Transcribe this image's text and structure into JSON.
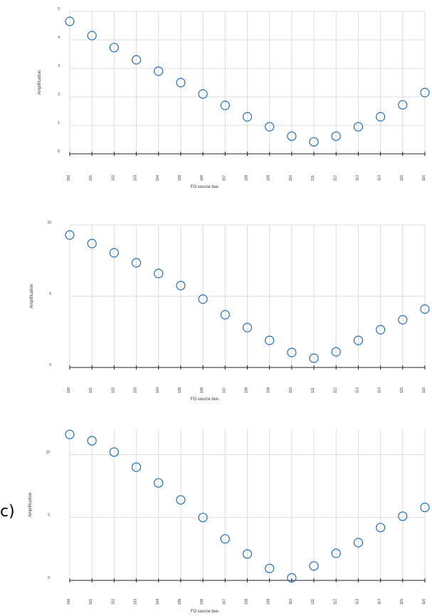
{
  "colors": {
    "marker": "#1f6fb5",
    "grid": "#dcdcdc",
    "axis": "#222222"
  },
  "panel_label": "c)",
  "chart_data": [
    {
      "type": "scatter",
      "xlabel": "FO source bus",
      "ylabel": "Amplification",
      "categories": [
        "100",
        "101",
        "102",
        "103",
        "104",
        "105",
        "106",
        "107",
        "108",
        "109",
        "110",
        "111",
        "112",
        "113",
        "114",
        "115",
        "116"
      ],
      "values": [
        4.65,
        4.15,
        3.73,
        3.3,
        2.9,
        2.5,
        2.1,
        1.7,
        1.3,
        0.95,
        0.62,
        0.42,
        0.62,
        0.95,
        1.3,
        1.72,
        2.15
      ],
      "ylim": [
        0,
        5
      ],
      "yticks": [
        "0",
        "1",
        "2",
        "3",
        "4",
        "5"
      ],
      "ytick_values": [
        0,
        1,
        2,
        3,
        4,
        5
      ],
      "grid": true
    },
    {
      "type": "scatter",
      "xlabel": "FO source bus",
      "ylabel": "Amplification",
      "categories": [
        "100",
        "101",
        "102",
        "103",
        "104",
        "105",
        "106",
        "107",
        "108",
        "109",
        "110",
        "111",
        "112",
        "113",
        "114",
        "115",
        "116"
      ],
      "values": [
        9.3,
        8.7,
        8.05,
        7.35,
        6.6,
        5.75,
        4.8,
        3.7,
        2.8,
        1.9,
        1.05,
        0.65,
        1.1,
        1.9,
        2.65,
        3.35,
        4.1
      ],
      "ylim": [
        0,
        10
      ],
      "yticks": [
        "0",
        "5",
        "10"
      ],
      "ytick_values": [
        0,
        5,
        10
      ],
      "grid": true
    },
    {
      "type": "scatter",
      "xlabel": "FO source bus",
      "ylabel": "Amplification",
      "categories": [
        "100",
        "101",
        "102",
        "103",
        "104",
        "105",
        "106",
        "107",
        "108",
        "109",
        "110",
        "111",
        "112",
        "113",
        "114",
        "115",
        "116"
      ],
      "values": [
        11.6,
        11.1,
        10.2,
        9.0,
        7.75,
        6.4,
        5.0,
        3.3,
        2.1,
        0.95,
        0.2,
        1.15,
        2.15,
        3.0,
        4.2,
        5.1,
        5.8
      ],
      "ylim": [
        0,
        12
      ],
      "yticks": [
        "0",
        "5",
        "10"
      ],
      "ytick_values": [
        0,
        5,
        10
      ],
      "grid": true
    }
  ]
}
